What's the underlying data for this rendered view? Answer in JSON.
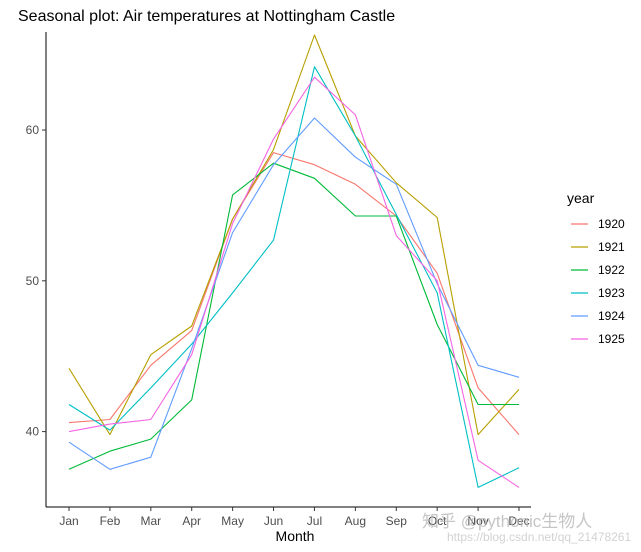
{
  "chart_data": {
    "type": "line",
    "title": "Seasonal plot: Air temperatures at Nottingham Castle",
    "xlabel": "Month",
    "ylabel": "",
    "categories": [
      "Jan",
      "Feb",
      "Mar",
      "Apr",
      "May",
      "Jun",
      "Jul",
      "Aug",
      "Sep",
      "Oct",
      "Nov",
      "Dec"
    ],
    "ylim": [
      35,
      66.5
    ],
    "yticks": [
      40,
      50,
      60
    ],
    "grid": false,
    "legend": {
      "title": "year",
      "placement": "right"
    },
    "series": [
      {
        "name": "1920",
        "color": "#F8766D",
        "values": [
          40.6,
          40.8,
          44.4,
          46.7,
          54.1,
          58.5,
          57.7,
          56.4,
          54.3,
          50.5,
          42.9,
          39.8
        ]
      },
      {
        "name": "1921",
        "color": "#B79F00",
        "values": [
          44.2,
          39.8,
          45.1,
          47.0,
          54.1,
          58.7,
          66.3,
          59.6,
          56.5,
          54.2,
          39.8,
          42.8
        ]
      },
      {
        "name": "1922",
        "color": "#00BA38",
        "values": [
          37.5,
          38.7,
          39.5,
          42.1,
          55.7,
          57.8,
          56.8,
          54.3,
          54.3,
          47.1,
          41.8,
          41.8
        ]
      },
      {
        "name": "1923",
        "color": "#00BFC4",
        "values": [
          41.8,
          40.1,
          42.9,
          45.8,
          49.2,
          52.7,
          64.2,
          59.6,
          54.4,
          49.2,
          36.3,
          37.6
        ]
      },
      {
        "name": "1924",
        "color": "#619CFF",
        "values": [
          39.3,
          37.5,
          38.3,
          45.5,
          53.2,
          57.7,
          60.8,
          58.2,
          56.4,
          49.8,
          44.4,
          43.6
        ]
      },
      {
        "name": "1925",
        "color": "#F564E3",
        "values": [
          40.0,
          40.5,
          40.8,
          45.1,
          53.8,
          59.4,
          63.5,
          61.0,
          53.0,
          50.0,
          38.1,
          36.3
        ]
      }
    ]
  },
  "watermark": {
    "main": "知乎 @pythonic生物人",
    "url": "https://blog.csdn.net/qq_21478261"
  }
}
